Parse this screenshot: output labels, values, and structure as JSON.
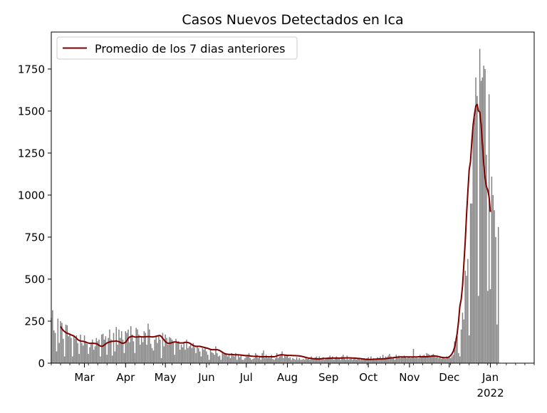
{
  "chart_data": {
    "type": "bar",
    "title": "Casos Nuevos Detectados en Ica",
    "xlabel": "",
    "ylabel": "",
    "ylim": [
      0,
      1970
    ],
    "yticks": [
      0,
      250,
      500,
      750,
      1000,
      1250,
      1500,
      1750
    ],
    "xrange": [
      "2021-02-04",
      "2022-02-03"
    ],
    "xticks": [
      {
        "date": "2021-03-01",
        "label": "Mar"
      },
      {
        "date": "2021-04-01",
        "label": "Apr"
      },
      {
        "date": "2021-05-01",
        "label": "May"
      },
      {
        "date": "2021-06-01",
        "label": "Jun"
      },
      {
        "date": "2021-07-01",
        "label": "Jul"
      },
      {
        "date": "2021-08-01",
        "label": "Aug"
      },
      {
        "date": "2021-09-01",
        "label": "Sep"
      },
      {
        "date": "2021-10-01",
        "label": "Oct"
      },
      {
        "date": "2021-11-01",
        "label": "Nov"
      },
      {
        "date": "2021-12-01",
        "label": "Dec"
      },
      {
        "date": "2022-01-01",
        "label": "Jan",
        "sublabel": "2022"
      }
    ],
    "bars": {
      "start_date": "2021-02-04",
      "color": "#808080",
      "values": [
        270,
        315,
        195,
        180,
        70,
        265,
        120,
        250,
        240,
        145,
        40,
        230,
        225,
        160,
        170,
        150,
        40,
        160,
        145,
        165,
        120,
        55,
        170,
        120,
        105,
        165,
        130,
        115,
        55,
        95,
        120,
        140,
        80,
        100,
        150,
        130,
        140,
        40,
        170,
        175,
        140,
        160,
        50,
        150,
        200,
        140,
        45,
        180,
        70,
        215,
        110,
        200,
        150,
        190,
        140,
        60,
        190,
        180,
        200,
        125,
        220,
        170,
        130,
        60,
        210,
        200,
        170,
        110,
        160,
        125,
        190,
        180,
        110,
        235,
        200,
        115,
        90,
        75,
        140,
        160,
        120,
        160,
        140,
        30,
        180,
        100,
        170,
        150,
        110,
        155,
        150,
        140,
        130,
        50,
        145,
        125,
        130,
        80,
        110,
        95,
        120,
        80,
        140,
        90,
        100,
        110,
        90,
        120,
        95,
        60,
        100,
        90,
        70,
        40,
        90,
        80,
        95,
        70,
        50,
        20,
        80,
        65,
        60,
        50,
        100,
        60,
        40,
        45,
        20,
        70,
        55,
        60,
        55,
        40,
        50,
        30,
        60,
        45,
        40,
        60,
        20,
        50,
        35,
        50,
        20,
        20,
        30,
        40,
        40,
        60,
        30,
        20,
        25,
        30,
        60,
        50,
        30,
        40,
        20,
        60,
        75,
        30,
        50,
        30,
        40,
        30,
        50,
        25,
        20,
        30,
        60,
        30,
        40,
        50,
        70,
        30,
        50,
        40,
        45,
        30,
        35,
        20,
        30,
        25,
        20,
        35,
        20,
        30,
        20,
        20,
        25,
        20,
        30,
        25,
        30,
        20,
        40,
        25,
        30,
        35,
        40,
        30,
        40,
        25,
        30,
        35,
        20,
        25,
        30,
        35,
        45,
        30,
        40,
        20,
        35,
        40,
        25,
        30,
        20,
        40,
        50,
        30,
        20,
        45,
        20,
        25,
        30,
        20,
        25,
        30,
        20,
        25,
        30,
        20,
        25,
        20,
        30,
        25,
        30,
        35,
        20,
        40,
        25,
        30,
        20,
        25,
        35,
        30,
        40,
        25,
        50,
        30,
        40,
        35,
        45,
        55,
        40,
        35,
        30,
        20,
        50,
        40,
        45,
        30,
        35,
        40,
        45,
        40,
        30,
        35,
        35,
        30,
        40,
        85,
        30,
        40,
        30,
        30,
        50,
        40,
        45,
        50,
        40,
        60,
        55,
        50,
        45,
        50,
        55,
        40,
        35,
        45,
        30,
        40,
        25,
        35,
        30,
        25,
        40,
        30,
        35,
        30,
        40,
        50,
        130,
        150,
        160,
        60,
        40,
        200,
        300,
        260,
        550,
        520,
        620,
        165,
        950,
        950,
        1410,
        1460,
        1700,
        1590,
        400,
        1870,
        1680,
        1700,
        1770,
        1750,
        1240,
        430,
        1600,
        440,
        1110,
        1000,
        910,
        750,
        230,
        810
      ]
    },
    "series": [
      {
        "name": "Promedio de los 7 dias anteriores",
        "color": "#800000",
        "start_date": "2021-02-11",
        "values": [
          218,
          205,
          195,
          188,
          182,
          178,
          175,
          172,
          168,
          165,
          162,
          155,
          148,
          140,
          135,
          132,
          130,
          130,
          128,
          125,
          122,
          120,
          118,
          118,
          118,
          118,
          117,
          116,
          112,
          106,
          102,
          100,
          102,
          108,
          115,
          120,
          124,
          126,
          128,
          130,
          130,
          131,
          132,
          130,
          128,
          124,
          120,
          118,
          120,
          125,
          135,
          148,
          155,
          158,
          160,
          158,
          156,
          155,
          156,
          157,
          158,
          157,
          156,
          156,
          157,
          158,
          158,
          158,
          157,
          156,
          156,
          158,
          160,
          162,
          164,
          164,
          158,
          148,
          138,
          128,
          122,
          118,
          118,
          120,
          122,
          125,
          126,
          126,
          124,
          122,
          120,
          120,
          120,
          122,
          124,
          124,
          123,
          120,
          116,
          110,
          105,
          102,
          100,
          100,
          100,
          100,
          98,
          96,
          94,
          92,
          90,
          88,
          85,
          82,
          80,
          80,
          80,
          80,
          80,
          78,
          75,
          70,
          65,
          60,
          56,
          54,
          53,
          52,
          52,
          52,
          51,
          50,
          50,
          50,
          50,
          49,
          48,
          47,
          46,
          45,
          45,
          45,
          44,
          43,
          42,
          41,
          40,
          40,
          40,
          40,
          39,
          38,
          38,
          38,
          38,
          38,
          38,
          38,
          38,
          38,
          38,
          38,
          40,
          43,
          46,
          48,
          50,
          50,
          49,
          48,
          47,
          46,
          46,
          46,
          46,
          45,
          45,
          45,
          44,
          44,
          43,
          42,
          40,
          38,
          36,
          34,
          32,
          30,
          29,
          28,
          27,
          26,
          26,
          25,
          25,
          25,
          26,
          27,
          28,
          28,
          28,
          29,
          29,
          29,
          30,
          30,
          30,
          30,
          30,
          30,
          30,
          30,
          30,
          31,
          31,
          31,
          31,
          31,
          31,
          31,
          30,
          30,
          30,
          29,
          28,
          28,
          27,
          26,
          25,
          24,
          23,
          22,
          22,
          22,
          22,
          23,
          23,
          24,
          24,
          25,
          25,
          25,
          25,
          26,
          26,
          27,
          28,
          29,
          30,
          31,
          32,
          33,
          34,
          35,
          36,
          36,
          37,
          37,
          37,
          37,
          37,
          37,
          37,
          37,
          37,
          37,
          37,
          37,
          37,
          37,
          38,
          38,
          38,
          38,
          38,
          38,
          38,
          39,
          40,
          41,
          42,
          43,
          43,
          42,
          41,
          39,
          37,
          35,
          34,
          33,
          33,
          33,
          34,
          38,
          45,
          55,
          70,
          95,
          130,
          180,
          250,
          340,
          380,
          460,
          590,
          720,
          880,
          1020,
          1150,
          1200,
          1320,
          1420,
          1480,
          1530,
          1540,
          1500,
          1495,
          1420,
          1300,
          1180,
          1100,
          1050,
          1030,
          990,
          900
        ]
      }
    ],
    "legend": {
      "position": "upper-left"
    }
  }
}
